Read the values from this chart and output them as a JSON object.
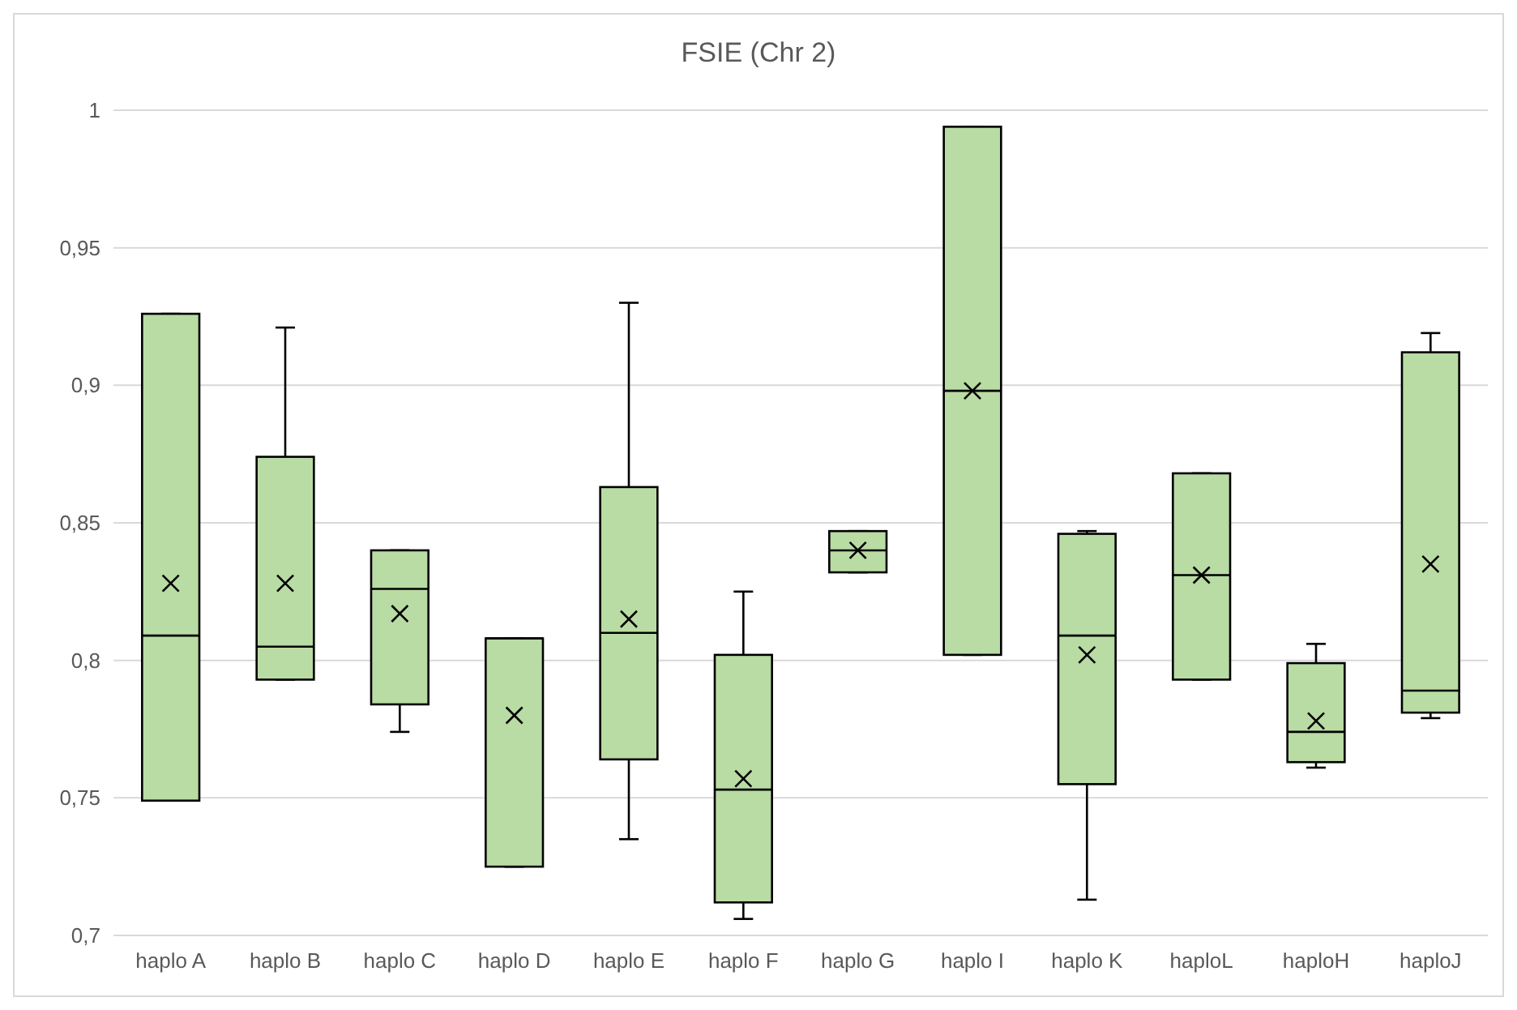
{
  "chart_data": {
    "type": "box",
    "title": "FSIE (Chr 2)",
    "categories": [
      "haplo A",
      "haplo B",
      "haplo C",
      "haplo D",
      "haplo E",
      "haplo F",
      "haplo G",
      "haplo I",
      "haplo K",
      "haploL",
      "haploH",
      "haploJ"
    ],
    "color": "#b9dba4",
    "ylim": [
      0.7,
      1
    ],
    "yticks": [
      {
        "value": 0.7,
        "label": "0,7"
      },
      {
        "value": 0.75,
        "label": "0,75"
      },
      {
        "value": 0.8,
        "label": "0,8"
      },
      {
        "value": 0.85,
        "label": "0,85"
      },
      {
        "value": 0.9,
        "label": "0,9"
      },
      {
        "value": 0.95,
        "label": "0,95"
      },
      {
        "value": 1,
        "label": "1"
      }
    ],
    "grid": "y",
    "boxes": [
      {
        "low": 0.749,
        "q1": 0.749,
        "median": 0.809,
        "q3": 0.926,
        "high": 0.926,
        "mean": 0.828
      },
      {
        "low": 0.793,
        "q1": 0.793,
        "median": 0.805,
        "q3": 0.874,
        "high": 0.921,
        "mean": 0.828
      },
      {
        "low": 0.774,
        "q1": 0.784,
        "median": 0.826,
        "q3": 0.84,
        "high": 0.84,
        "mean": 0.817
      },
      {
        "low": 0.725,
        "q1": 0.725,
        "median": 0.808,
        "q3": 0.808,
        "high": 0.808,
        "mean": 0.78
      },
      {
        "low": 0.735,
        "q1": 0.764,
        "median": 0.81,
        "q3": 0.863,
        "high": 0.93,
        "mean": 0.815
      },
      {
        "low": 0.706,
        "q1": 0.712,
        "median": 0.753,
        "q3": 0.802,
        "high": 0.825,
        "mean": 0.757
      },
      {
        "low": 0.832,
        "q1": 0.832,
        "median": 0.84,
        "q3": 0.847,
        "high": 0.847,
        "mean": 0.84
      },
      {
        "low": 0.802,
        "q1": 0.802,
        "median": 0.898,
        "q3": 0.994,
        "high": 0.994,
        "mean": 0.898
      },
      {
        "low": 0.713,
        "q1": 0.755,
        "median": 0.809,
        "q3": 0.846,
        "high": 0.847,
        "mean": 0.802
      },
      {
        "low": 0.793,
        "q1": 0.793,
        "median": 0.831,
        "q3": 0.868,
        "high": 0.868,
        "mean": 0.831
      },
      {
        "low": 0.761,
        "q1": 0.763,
        "median": 0.774,
        "q3": 0.799,
        "high": 0.806,
        "mean": 0.778
      },
      {
        "low": 0.779,
        "q1": 0.781,
        "median": 0.789,
        "q3": 0.912,
        "high": 0.919,
        "mean": 0.835
      }
    ]
  }
}
